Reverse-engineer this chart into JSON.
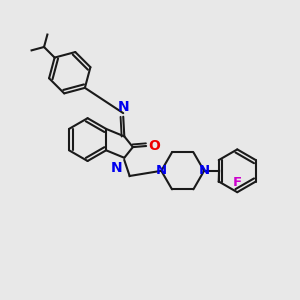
{
  "bg_color": "#e8e8e8",
  "bond_color": "#1a1a1a",
  "N_color": "#0000ee",
  "O_color": "#ee0000",
  "F_color": "#cc00cc",
  "lw": 1.5,
  "figsize": [
    3.0,
    3.0
  ],
  "dpi": 100,
  "xlim": [
    0,
    10
  ],
  "ylim": [
    0,
    10
  ]
}
